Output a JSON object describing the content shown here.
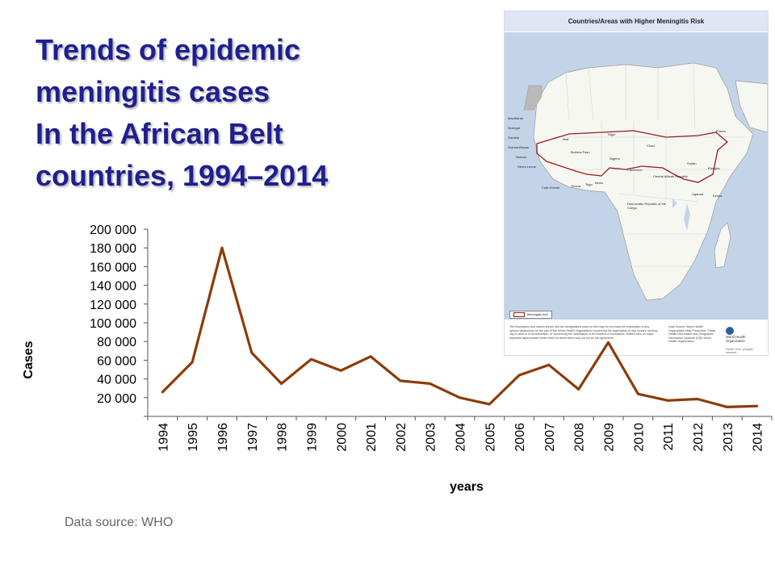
{
  "slide": {
    "title_lines": [
      "Trends of epidemic",
      "meningitis cases",
      "In the African Belt",
      "countries, 1994–2014"
    ],
    "source": "Data source: WHO",
    "title_color": "#1f1f8f"
  },
  "map": {
    "title": "Countries/Areas with Higher Meningitis Risk",
    "legend": "Meningitis belt",
    "labels": [
      "Mauritania",
      "Senegal",
      "Gambia",
      "Guinea-Bissau",
      "Guinea",
      "Sierra Leone",
      "Mali",
      "Burkina Faso",
      "Niger",
      "Chad",
      "Sudan",
      "Eritrea",
      "Nigeria",
      "Cameroon",
      "Central African Republic",
      "Ethiopia",
      "Cote d'Ivoire",
      "Ghana",
      "Togo",
      "Benin",
      "Uganda",
      "Kenya",
      "Democratic Republic of the Congo"
    ],
    "disclaimer": "The boundaries and names shown and the designations used on this map do not imply the expression of any opinion whatsoever on the part of the World Health Organization concerning the legal status of any country, territory, city or area or of its authorities, or concerning the delimitation of its frontiers or boundaries. Dotted lines on maps represent approximate border lines for which there may not yet be full agreement.",
    "data_source": "Data Source: World Health Organization Map Production: Public Health Information and Geographic Information Systems (GIS) World Health Organization",
    "org": "World Health Organization",
    "copyright": "©WHO 2011. All rights reserved.",
    "belt_color": "#9b1b1b"
  },
  "chart_data": {
    "type": "line",
    "title": "",
    "xlabel": "years",
    "ylabel": "Cases",
    "x": [
      "1994",
      "1995",
      "1996",
      "1997",
      "1998",
      "1999",
      "2000",
      "2001",
      "2002",
      "2003",
      "2004",
      "2005",
      "2006",
      "2007",
      "2008",
      "2009",
      "2010",
      "2011",
      "2012",
      "2013",
      "2014"
    ],
    "series": [
      {
        "values": [
          26000,
          58000,
          180000,
          68000,
          35000,
          61000,
          49000,
          64000,
          38000,
          35000,
          20000,
          13000,
          44000,
          55000,
          29000,
          79000,
          24000,
          17000,
          18500,
          10000,
          11000
        ],
        "color": "#8b3c0a"
      }
    ],
    "yticks": [
      "20 000",
      "40 000",
      "60 000",
      "80 000",
      "100 000",
      "120 000",
      "140 000",
      "160 000",
      "180 000",
      "200 000"
    ],
    "ytick_values": [
      20000,
      40000,
      60000,
      80000,
      100000,
      120000,
      140000,
      160000,
      180000,
      200000
    ],
    "ylim": [
      0,
      200000
    ],
    "grid": false,
    "legend": "none"
  }
}
